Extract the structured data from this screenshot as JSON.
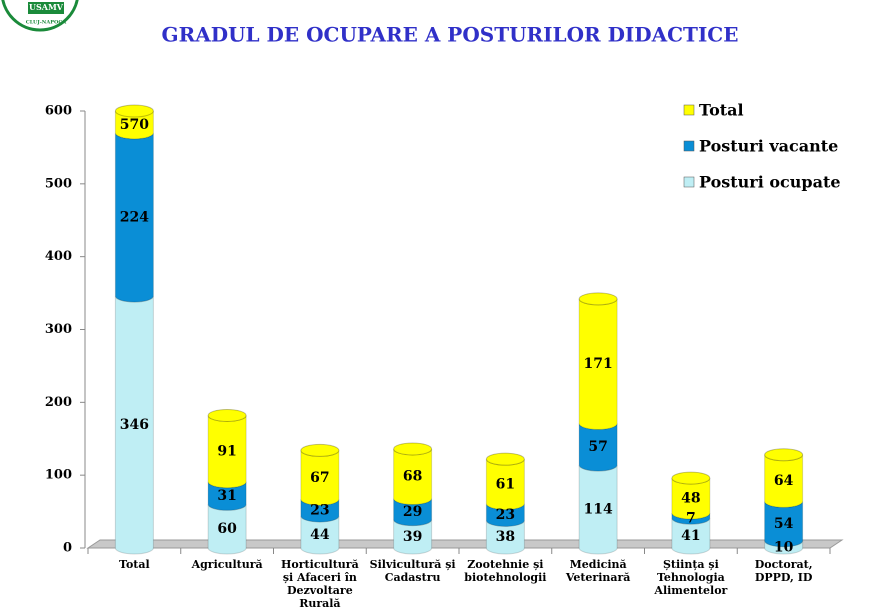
{
  "logo": {
    "name": "USAMV",
    "city": "CLUJ-NAPOCA"
  },
  "chart_data": {
    "type": "bar3d_stacked",
    "title": "GRADUL DE OCUPARE A POSTURILOR DIDACTICE",
    "categories": [
      "Total",
      "Agricultură",
      "Horticultură și Afaceri în Dezvoltare Rurală",
      "Silvicultură și Cadastru",
      "Zootehnie și biotehnologii",
      "Medicină Veterinară",
      "Știința și Tehnologia Alimentelor",
      "Doctorat, DPPD, ID"
    ],
    "series": [
      {
        "name": "Posturi ocupate",
        "color": "#bfeef4",
        "values": [
          346,
          60,
          44,
          39,
          38,
          114,
          41,
          10
        ]
      },
      {
        "name": "Posturi vacante",
        "color": "#0a8ed6",
        "values": [
          224,
          31,
          23,
          29,
          23,
          57,
          7,
          54
        ]
      },
      {
        "name": "Total",
        "color": "#ffff00",
        "values": [
          570,
          91,
          67,
          68,
          61,
          171,
          48,
          64
        ]
      }
    ],
    "ylim": [
      0,
      600
    ],
    "yticks": [
      0,
      100,
      200,
      300,
      400,
      500,
      600
    ],
    "legend": "right"
  }
}
